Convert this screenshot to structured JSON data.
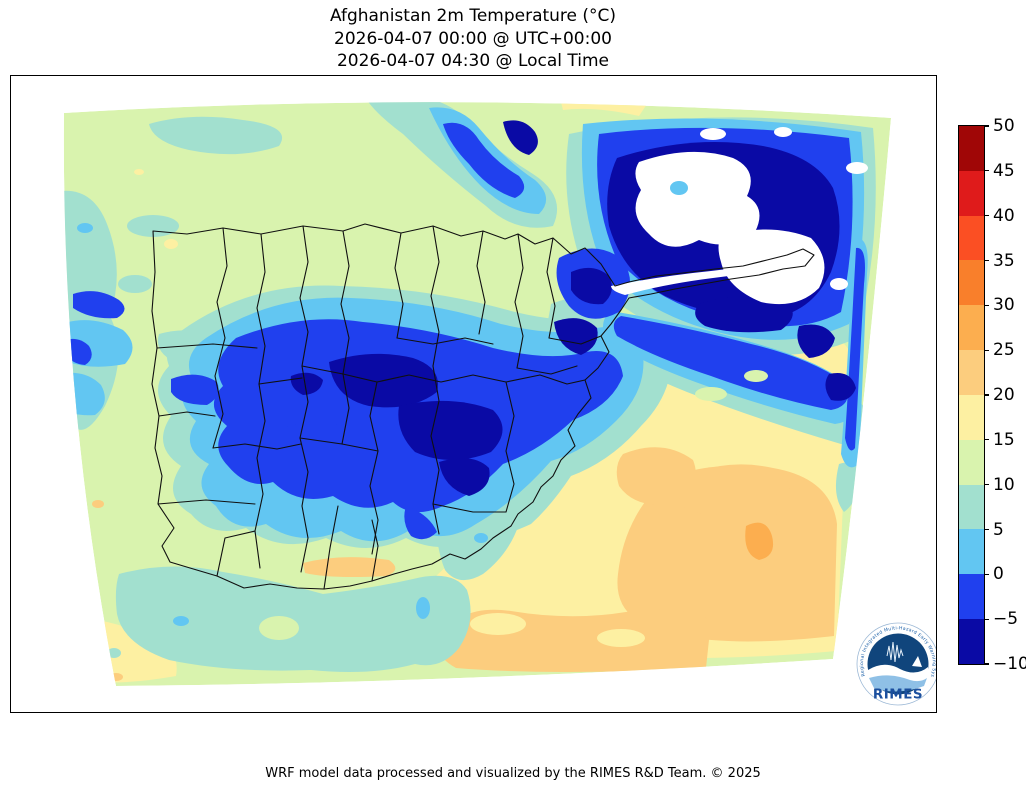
{
  "figure": {
    "title_line1": "Afghanistan 2m Temperature (°C)",
    "title_line2": "2026-04-07 00:00 @ UTC+00:00",
    "title_line3": "2026-04-07 04:30 @ Local Time",
    "footer_credit": "WRF model data processed and visualized by the RIMES R&D Team. © 2025"
  },
  "map": {
    "region_label": "Afghanistan",
    "no_data_fill": "#ffffff",
    "boundary_color": "#101010"
  },
  "colorbar": {
    "unit": "°C",
    "tick_labels_top_to_bottom": [
      "50",
      "45",
      "40",
      "35",
      "30",
      "25",
      "20",
      "15",
      "10",
      "5",
      "0",
      "−5",
      "−10"
    ],
    "levels_min": -10,
    "levels_max": 50,
    "level_step": 5,
    "segment_colors_top_to_bottom": [
      "#a00606",
      "#df1b1b",
      "#fb4f23",
      "#f97f2b",
      "#fcae4f",
      "#fccd7e",
      "#fdf0a2",
      "#d9f3ae",
      "#a2e0cf",
      "#62c6f2",
      "#2040ee",
      "#0a0aa5"
    ]
  },
  "logo": {
    "label": "RIMES",
    "ring_text": "Regional Integrated Multi-Hazard Early Warning System",
    "primary_color": "#1b4f9e"
  }
}
